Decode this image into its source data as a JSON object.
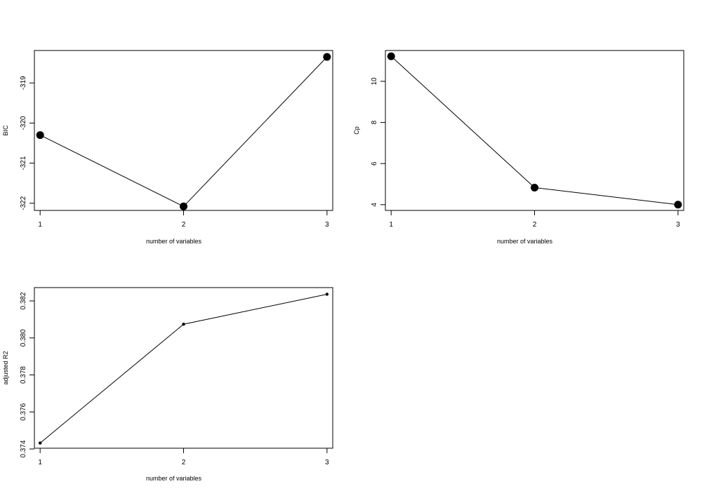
{
  "chart_data": [
    {
      "type": "line",
      "x": [
        1,
        2,
        3
      ],
      "values": [
        -320.3,
        -322.08,
        -318.35
      ],
      "xlabel": "number of variables",
      "ylabel": "BIC",
      "xticks": [
        "1",
        "2",
        "3"
      ],
      "yticks": [
        -322,
        -321,
        -320,
        -319
      ],
      "ytick_labels": [
        "-322",
        "-321",
        "-320",
        "-319"
      ],
      "xlim": [
        0.96,
        3.04
      ],
      "ylim": [
        -322.18,
        -318.19
      ],
      "marker": "large-filled-circle",
      "grid": false
    },
    {
      "type": "line",
      "x": [
        1,
        2,
        3
      ],
      "values": [
        11.22,
        4.83,
        4.0
      ],
      "xlabel": "number of variables",
      "ylabel": "Cp",
      "xticks": [
        "1",
        "2",
        "3"
      ],
      "yticks": [
        4,
        6,
        8,
        10
      ],
      "ytick_labels": [
        "4",
        "6",
        "8",
        "10"
      ],
      "xlim": [
        0.96,
        3.04
      ],
      "ylim": [
        3.72,
        11.5
      ],
      "marker": "large-filled-circle",
      "grid": false
    },
    {
      "type": "line",
      "x": [
        1,
        2,
        3
      ],
      "values": [
        0.37432,
        0.38074,
        0.38236
      ],
      "xlabel": "number of variables",
      "ylabel": "adjusted R2",
      "xticks": [
        "1",
        "2",
        "3"
      ],
      "yticks": [
        0.374,
        0.376,
        0.378,
        0.38,
        0.382
      ],
      "ytick_labels": [
        "0.374",
        "0.376",
        "0.378",
        "0.380",
        "0.382"
      ],
      "xlim": [
        0.96,
        3.04
      ],
      "ylim": [
        0.37404,
        0.38272
      ],
      "marker": "small-filled-circle",
      "grid": false
    }
  ]
}
